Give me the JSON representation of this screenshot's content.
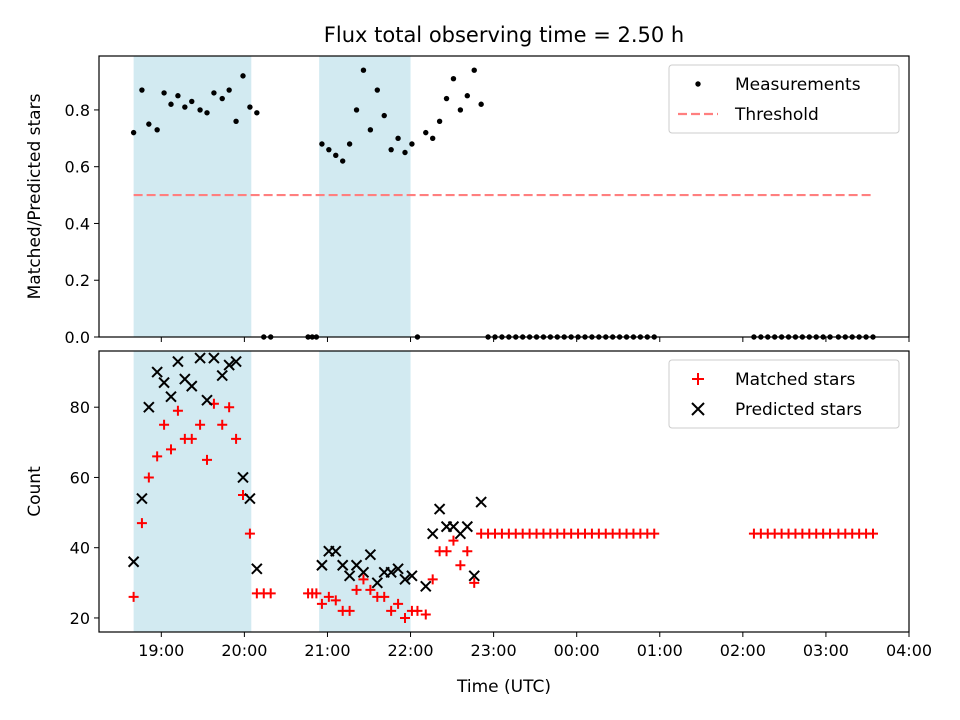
{
  "title": "Flux total observing time = 2.50 h",
  "chart_data": [
    {
      "type": "scatter",
      "panel": "top",
      "xlabel": "",
      "ylabel": "Matched/Predicted stars",
      "ylim": [
        0,
        0.99
      ],
      "yticks": [
        0.0,
        0.2,
        0.4,
        0.6,
        0.8
      ],
      "ytick_labels": [
        "0.0",
        "0.2",
        "0.4",
        "0.6",
        "0.8"
      ],
      "legend_position": "top-right",
      "shaded_intervals": [
        [
          "18:40",
          "20:05"
        ],
        [
          "20:54",
          "22:00"
        ]
      ],
      "threshold": {
        "name": "Threshold",
        "value": 0.5,
        "x_range": [
          "18:40",
          "03:35"
        ],
        "color": "#ff7f7f",
        "style": "dashed"
      },
      "series": [
        {
          "name": "Measurements",
          "marker": "dot",
          "color": "#000000",
          "points": [
            [
              "18:40",
              0.72
            ],
            [
              "18:46",
              0.87
            ],
            [
              "18:51",
              0.75
            ],
            [
              "18:57",
              0.73
            ],
            [
              "19:02",
              0.86
            ],
            [
              "19:07",
              0.82
            ],
            [
              "19:12",
              0.85
            ],
            [
              "19:17",
              0.81
            ],
            [
              "19:22",
              0.83
            ],
            [
              "19:28",
              0.8
            ],
            [
              "19:33",
              0.79
            ],
            [
              "19:38",
              0.86
            ],
            [
              "19:44",
              0.84
            ],
            [
              "19:49",
              0.87
            ],
            [
              "19:54",
              0.76
            ],
            [
              "19:59",
              0.92
            ],
            [
              "20:04",
              0.81
            ],
            [
              "20:09",
              0.79
            ],
            [
              "20:14",
              0.0
            ],
            [
              "20:19",
              0.0
            ],
            [
              "20:46",
              0.0
            ],
            [
              "20:49",
              0.0
            ],
            [
              "20:52",
              0.0
            ],
            [
              "20:56",
              0.68
            ],
            [
              "21:01",
              0.66
            ],
            [
              "21:06",
              0.64
            ],
            [
              "21:11",
              0.62
            ],
            [
              "21:16",
              0.68
            ],
            [
              "21:21",
              0.8
            ],
            [
              "21:26",
              0.94
            ],
            [
              "21:31",
              0.73
            ],
            [
              "21:36",
              0.87
            ],
            [
              "21:41",
              0.78
            ],
            [
              "21:46",
              0.66
            ],
            [
              "21:51",
              0.7
            ],
            [
              "21:56",
              0.65
            ],
            [
              "22:01",
              0.68
            ],
            [
              "22:05",
              0.0
            ],
            [
              "22:11",
              0.72
            ],
            [
              "22:16",
              0.7
            ],
            [
              "22:21",
              0.76
            ],
            [
              "22:26",
              0.84
            ],
            [
              "22:31",
              0.91
            ],
            [
              "22:36",
              0.8
            ],
            [
              "22:41",
              0.85
            ],
            [
              "22:46",
              0.94
            ],
            [
              "22:51",
              0.82
            ],
            [
              "22:56",
              0.0
            ],
            [
              "23:01",
              0.0
            ],
            [
              "23:06",
              0.0
            ],
            [
              "23:11",
              0.0
            ],
            [
              "23:16",
              0.0
            ],
            [
              "23:21",
              0.0
            ],
            [
              "23:26",
              0.0
            ],
            [
              "23:31",
              0.0
            ],
            [
              "23:36",
              0.0
            ],
            [
              "23:41",
              0.0
            ],
            [
              "23:46",
              0.0
            ],
            [
              "23:51",
              0.0
            ],
            [
              "23:56",
              0.0
            ],
            [
              "00:01",
              0.0
            ],
            [
              "00:06",
              0.0
            ],
            [
              "00:11",
              0.0
            ],
            [
              "00:16",
              0.0
            ],
            [
              "00:21",
              0.0
            ],
            [
              "00:26",
              0.0
            ],
            [
              "00:31",
              0.0
            ],
            [
              "00:36",
              0.0
            ],
            [
              "00:41",
              0.0
            ],
            [
              "00:46",
              0.0
            ],
            [
              "00:51",
              0.0
            ],
            [
              "00:56",
              0.0
            ],
            [
              "02:08",
              0.0
            ],
            [
              "02:13",
              0.0
            ],
            [
              "02:18",
              0.0
            ],
            [
              "02:23",
              0.0
            ],
            [
              "02:28",
              0.0
            ],
            [
              "02:33",
              0.0
            ],
            [
              "02:38",
              0.0
            ],
            [
              "02:43",
              0.0
            ],
            [
              "02:48",
              0.0
            ],
            [
              "02:53",
              0.0
            ],
            [
              "02:58",
              0.0
            ],
            [
              "03:03",
              0.0
            ],
            [
              "03:09",
              0.0
            ],
            [
              "03:14",
              0.0
            ],
            [
              "03:19",
              0.0
            ],
            [
              "03:24",
              0.0
            ],
            [
              "03:29",
              0.0
            ],
            [
              "03:34",
              0.0
            ]
          ]
        }
      ]
    },
    {
      "type": "scatter",
      "panel": "bottom",
      "xlabel": "Time (UTC)",
      "ylabel": "Count",
      "ylim": [
        16,
        96
      ],
      "yticks": [
        20,
        40,
        60,
        80
      ],
      "ytick_labels": [
        "20",
        "40",
        "60",
        "80"
      ],
      "xticks": [
        "19:00",
        "20:00",
        "21:00",
        "22:00",
        "23:00",
        "00:00",
        "01:00",
        "02:00",
        "03:00",
        "04:00"
      ],
      "xlim": [
        "18:15",
        "04:00"
      ],
      "legend_position": "top-right",
      "shaded_intervals": [
        [
          "18:40",
          "20:05"
        ],
        [
          "20:54",
          "22:00"
        ]
      ],
      "series": [
        {
          "name": "Matched stars",
          "marker": "plus",
          "color": "#ff0000",
          "points": [
            [
              "18:40",
              26
            ],
            [
              "18:46",
              47
            ],
            [
              "18:51",
              60
            ],
            [
              "18:57",
              66
            ],
            [
              "19:02",
              75
            ],
            [
              "19:07",
              68
            ],
            [
              "19:12",
              79
            ],
            [
              "19:17",
              71
            ],
            [
              "19:22",
              71
            ],
            [
              "19:28",
              75
            ],
            [
              "19:33",
              65
            ],
            [
              "19:38",
              81
            ],
            [
              "19:44",
              75
            ],
            [
              "19:49",
              80
            ],
            [
              "19:54",
              71
            ],
            [
              "19:59",
              55
            ],
            [
              "20:04",
              44
            ],
            [
              "20:09",
              27
            ],
            [
              "20:14",
              27
            ],
            [
              "20:19",
              27
            ],
            [
              "20:46",
              27
            ],
            [
              "20:49",
              27
            ],
            [
              "20:52",
              27
            ],
            [
              "20:56",
              24
            ],
            [
              "21:01",
              26
            ],
            [
              "21:06",
              25
            ],
            [
              "21:11",
              22
            ],
            [
              "21:16",
              22
            ],
            [
              "21:21",
              28
            ],
            [
              "21:26",
              31
            ],
            [
              "21:31",
              28
            ],
            [
              "21:36",
              26
            ],
            [
              "21:41",
              26
            ],
            [
              "21:46",
              22
            ],
            [
              "21:51",
              24
            ],
            [
              "21:56",
              20
            ],
            [
              "22:01",
              22
            ],
            [
              "22:05",
              22
            ],
            [
              "22:11",
              21
            ],
            [
              "22:16",
              31
            ],
            [
              "22:21",
              39
            ],
            [
              "22:26",
              39
            ],
            [
              "22:31",
              42
            ],
            [
              "22:36",
              35
            ],
            [
              "22:41",
              39
            ],
            [
              "22:46",
              30
            ],
            [
              "22:51",
              44
            ],
            [
              "22:56",
              44
            ],
            [
              "23:01",
              44
            ],
            [
              "23:06",
              44
            ],
            [
              "23:11",
              44
            ],
            [
              "23:16",
              44
            ],
            [
              "23:21",
              44
            ],
            [
              "23:26",
              44
            ],
            [
              "23:31",
              44
            ],
            [
              "23:36",
              44
            ],
            [
              "23:41",
              44
            ],
            [
              "23:46",
              44
            ],
            [
              "23:51",
              44
            ],
            [
              "23:56",
              44
            ],
            [
              "00:01",
              44
            ],
            [
              "00:06",
              44
            ],
            [
              "00:11",
              44
            ],
            [
              "00:16",
              44
            ],
            [
              "00:21",
              44
            ],
            [
              "00:26",
              44
            ],
            [
              "00:31",
              44
            ],
            [
              "00:36",
              44
            ],
            [
              "00:41",
              44
            ],
            [
              "00:46",
              44
            ],
            [
              "00:51",
              44
            ],
            [
              "00:56",
              44
            ],
            [
              "02:08",
              44
            ],
            [
              "02:13",
              44
            ],
            [
              "02:18",
              44
            ],
            [
              "02:23",
              44
            ],
            [
              "02:28",
              44
            ],
            [
              "02:33",
              44
            ],
            [
              "02:38",
              44
            ],
            [
              "02:43",
              44
            ],
            [
              "02:48",
              44
            ],
            [
              "02:53",
              44
            ],
            [
              "02:58",
              44
            ],
            [
              "03:03",
              44
            ],
            [
              "03:09",
              44
            ],
            [
              "03:14",
              44
            ],
            [
              "03:19",
              44
            ],
            [
              "03:24",
              44
            ],
            [
              "03:29",
              44
            ],
            [
              "03:34",
              44
            ]
          ]
        },
        {
          "name": "Predicted stars",
          "marker": "cross",
          "color": "#000000",
          "points": [
            [
              "18:40",
              36
            ],
            [
              "18:46",
              54
            ],
            [
              "18:51",
              80
            ],
            [
              "18:57",
              90
            ],
            [
              "19:02",
              87
            ],
            [
              "19:07",
              83
            ],
            [
              "19:12",
              93
            ],
            [
              "19:17",
              88
            ],
            [
              "19:22",
              86
            ],
            [
              "19:28",
              94
            ],
            [
              "19:33",
              82
            ],
            [
              "19:38",
              94
            ],
            [
              "19:44",
              89
            ],
            [
              "19:49",
              92
            ],
            [
              "19:54",
              93
            ],
            [
              "19:59",
              60
            ],
            [
              "20:04",
              54
            ],
            [
              "20:09",
              34
            ],
            [
              "20:56",
              35
            ],
            [
              "21:01",
              39
            ],
            [
              "21:06",
              39
            ],
            [
              "21:11",
              35
            ],
            [
              "21:16",
              32
            ],
            [
              "21:21",
              35
            ],
            [
              "21:26",
              33
            ],
            [
              "21:31",
              38
            ],
            [
              "21:36",
              30
            ],
            [
              "21:41",
              33
            ],
            [
              "21:46",
              33
            ],
            [
              "21:51",
              34
            ],
            [
              "21:56",
              31
            ],
            [
              "22:01",
              32
            ],
            [
              "22:11",
              29
            ],
            [
              "22:16",
              44
            ],
            [
              "22:21",
              51
            ],
            [
              "22:26",
              46
            ],
            [
              "22:31",
              46
            ],
            [
              "22:36",
              44
            ],
            [
              "22:41",
              46
            ],
            [
              "22:46",
              32
            ],
            [
              "22:51",
              53
            ]
          ]
        }
      ]
    }
  ]
}
